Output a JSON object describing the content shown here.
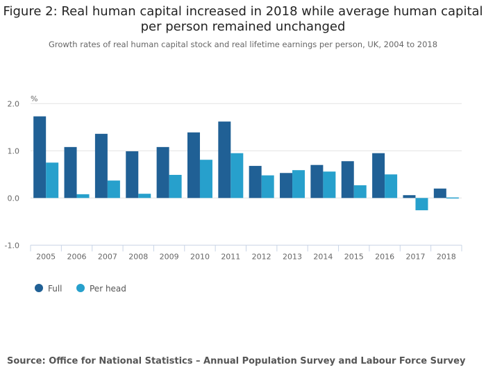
{
  "title": "Figure 2: Real human capital increased in 2018 while average human capital per person remained unchanged",
  "subtitle": "Growth rates of real human capital stock and real lifetime earnings per person, UK, 2004 to 2018",
  "source": "Source: Office for National Statistics – Annual Population Survey and Labour Force Survey",
  "chart_data": {
    "type": "bar",
    "title": "Figure 2: Real human capital increased in 2018 while average human capital per person remained unchanged",
    "subtitle": "Growth rates of real human capital stock and real lifetime earnings per person, UK, 2004 to 2018",
    "xlabel": "",
    "ylabel": "%",
    "ylim": [
      -1.0,
      2.0
    ],
    "yticks": [
      "2.0",
      "1.0",
      "0.0",
      "-1.0"
    ],
    "grid": true,
    "legend_position": "bottom-left",
    "categories": [
      "2005",
      "2006",
      "2007",
      "2008",
      "2009",
      "2010",
      "2011",
      "2012",
      "2013",
      "2014",
      "2015",
      "2016",
      "2017",
      "2018"
    ],
    "series": [
      {
        "name": "Full",
        "color": "#206095",
        "values": [
          1.73,
          1.08,
          1.36,
          0.99,
          1.08,
          1.39,
          1.62,
          0.68,
          0.53,
          0.7,
          0.78,
          0.95,
          0.06,
          0.2
        ]
      },
      {
        "name": "Per head",
        "color": "#27a0cc",
        "values": [
          0.75,
          0.08,
          0.37,
          0.09,
          0.49,
          0.81,
          0.95,
          0.48,
          0.59,
          0.56,
          0.27,
          0.5,
          -0.26,
          -0.01
        ]
      }
    ]
  }
}
